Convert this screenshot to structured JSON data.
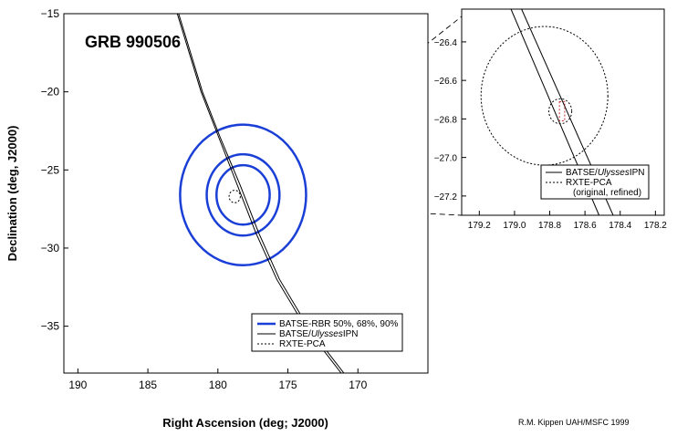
{
  "colors": {
    "axis": "#000000",
    "batse": "#1a3fd6",
    "ipn": "#000000",
    "rxte": "#000000",
    "rxte_refined": "#c03030"
  },
  "credit": "R.M. Kippen  UAH/MSFC  1999",
  "chart_data": [
    {
      "type": "line",
      "title": "GRB 990506",
      "xlabel": "Right Ascension (deg; J2000)",
      "ylabel": "Declination (deg, J2000)",
      "xlim": [
        191,
        165
      ],
      "ylim": [
        -38,
        -15
      ],
      "x_ticks": [
        190,
        185,
        180,
        175,
        170
      ],
      "x_tick_labels": [
        "190",
        "185",
        "180",
        "175",
        "170"
      ],
      "y_ticks": [
        -15,
        -20,
        -25,
        -30,
        -35
      ],
      "y_tick_labels": [
        "−15",
        "−20",
        "−25",
        "−30",
        "−35"
      ],
      "grid": false,
      "legend_position": "bottom-right",
      "legend": [
        {
          "label": "BATSE-RBR 50%, 68%, 90%",
          "style": "thick"
        },
        {
          "label_pre": "BATSE/",
          "label_italic": "Ulysses",
          "label_post": "IPN",
          "style": "solid"
        },
        {
          "label": "RXTE-PCA",
          "style": "dotted"
        }
      ],
      "batse_center": {
        "ra": 178.2,
        "dec": -26.6
      },
      "batse_contours": [
        {
          "level": "50%",
          "radius_deg": 1.9
        },
        {
          "level": "68%",
          "radius_deg": 2.6
        },
        {
          "level": "90%",
          "radius_deg": 4.5
        }
      ],
      "ipn_annulus": [
        {
          "name": "ipn-line-a",
          "points": [
            [
              182.9,
              -15.0
            ],
            [
              181.2,
              -20.0
            ],
            [
              179.9,
              -23.0
            ],
            [
              178.6,
              -26.0
            ],
            [
              177.3,
              -29.0
            ],
            [
              175.8,
              -32.0
            ],
            [
              173.8,
              -35.0
            ],
            [
              171.2,
              -38.0
            ]
          ]
        },
        {
          "name": "ipn-line-b",
          "points": [
            [
              182.8,
              -15.0
            ],
            [
              181.1,
              -20.0
            ],
            [
              179.8,
              -23.0
            ],
            [
              178.4,
              -26.0
            ],
            [
              177.1,
              -29.0
            ],
            [
              175.6,
              -32.0
            ],
            [
              173.6,
              -35.0
            ],
            [
              171.0,
              -38.0
            ]
          ]
        }
      ],
      "rxte_region": {
        "ra": 178.8,
        "dec": -26.7,
        "radius_deg": 0.4
      }
    },
    {
      "type": "line",
      "xlim": [
        179.3,
        178.15
      ],
      "ylim": [
        -27.3,
        -26.23
      ],
      "x_ticks": [
        179.2,
        179.0,
        178.8,
        178.6,
        178.4,
        178.2
      ],
      "x_tick_labels": [
        "179.2",
        "179.0",
        "178.8",
        "178.6",
        "178.4",
        "178.2"
      ],
      "y_ticks": [
        -26.4,
        -26.6,
        -26.8,
        -27.0,
        -27.2
      ],
      "y_tick_labels": [
        "−26.4",
        "−26.6",
        "−26.8",
        "−27.0",
        "−27.2"
      ],
      "grid": false,
      "legend_position": "bottom-right",
      "legend": [
        {
          "label_pre": "BATSE/",
          "label_italic": "Ulysses",
          "label_post": "IPN",
          "style": "solid"
        },
        {
          "label": "RXTE-PCA",
          "style": "dotted"
        },
        {
          "label": "(original, refined)",
          "style": "none"
        }
      ],
      "ipn_lines": [
        {
          "name": "zoom-ipn-line-a",
          "points": [
            [
              179.02,
              -26.23
            ],
            [
              178.52,
              -27.3
            ]
          ]
        },
        {
          "name": "zoom-ipn-line-b",
          "points": [
            [
              178.96,
              -26.23
            ],
            [
              178.44,
              -27.3
            ]
          ]
        }
      ],
      "rxte_original": {
        "ra": 178.83,
        "dec": -26.68,
        "radius_deg": 0.36
      },
      "rxte_refined": {
        "ra": 178.74,
        "dec": -26.76,
        "radius_deg": 0.065
      },
      "rxte_refined_box": {
        "ra_min": 178.715,
        "ra_max": 178.745,
        "dec_min": -26.81,
        "dec_max": -26.71
      }
    }
  ]
}
